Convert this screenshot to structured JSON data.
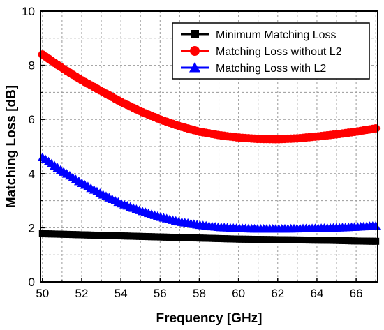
{
  "chart_data": {
    "type": "line",
    "title": "",
    "xlabel": "Frequency [GHz]",
    "ylabel": "Matching Loss [dB]",
    "xlim": [
      49.9,
      67.1
    ],
    "ylim": [
      0,
      10
    ],
    "xticks": [
      50,
      52,
      54,
      56,
      58,
      60,
      62,
      64,
      66
    ],
    "yticks": [
      0,
      2,
      4,
      6,
      8,
      10
    ],
    "grid": true,
    "legend_position": "top-right",
    "series": [
      {
        "name": "Minimum Matching Loss",
        "color": "#000000",
        "marker": "square",
        "x": [
          50,
          51,
          52,
          53,
          54,
          55,
          56,
          57,
          58,
          59,
          60,
          61,
          62,
          63,
          64,
          65,
          66,
          67
        ],
        "y": [
          1.78,
          1.76,
          1.74,
          1.72,
          1.7,
          1.68,
          1.66,
          1.64,
          1.62,
          1.6,
          1.58,
          1.57,
          1.56,
          1.55,
          1.54,
          1.53,
          1.51,
          1.5
        ]
      },
      {
        "name": "Matching Loss without L2",
        "color": "#ff0000",
        "marker": "circle",
        "x": [
          50,
          51,
          52,
          53,
          54,
          55,
          56,
          57,
          58,
          59,
          60,
          61,
          62,
          63,
          64,
          65,
          66,
          67
        ],
        "y": [
          8.4,
          7.9,
          7.45,
          7.05,
          6.65,
          6.3,
          6.0,
          5.75,
          5.55,
          5.42,
          5.33,
          5.28,
          5.27,
          5.3,
          5.37,
          5.45,
          5.55,
          5.67
        ]
      },
      {
        "name": "Matching Loss with L2",
        "color": "#0000ff",
        "marker": "triangle",
        "x": [
          50,
          51,
          52,
          53,
          54,
          55,
          56,
          57,
          58,
          59,
          60,
          61,
          62,
          63,
          64,
          65,
          66,
          67
        ],
        "y": [
          4.6,
          4.1,
          3.65,
          3.25,
          2.9,
          2.63,
          2.4,
          2.22,
          2.1,
          2.02,
          1.98,
          1.96,
          1.96,
          1.97,
          1.98,
          2.0,
          2.03,
          2.07
        ]
      }
    ]
  }
}
